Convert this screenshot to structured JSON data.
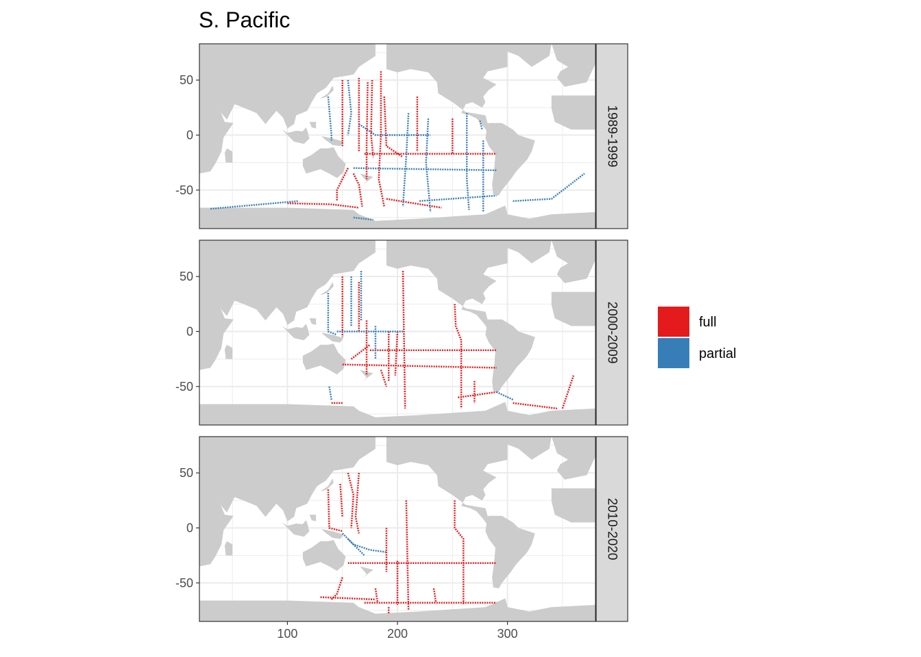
{
  "title": "S. Pacific",
  "colors": {
    "full": "#E41A1C",
    "partial": "#377EB8",
    "land": "#CCCCCC",
    "grid": "#EBEBEB",
    "strip_bg": "#D9D9D9",
    "panel_border": "#333333"
  },
  "legend": {
    "items": [
      {
        "key": "full",
        "label": "full"
      },
      {
        "key": "partial",
        "label": "partial"
      }
    ]
  },
  "chart_data": {
    "type": "map",
    "x_ticks": [
      100,
      200,
      300
    ],
    "y_ticks": [
      50,
      0,
      -50
    ],
    "x_tick_labels": [
      "100",
      "200",
      "300"
    ],
    "y_tick_labels": [
      "50",
      "0",
      "-50"
    ],
    "xlim": [
      20,
      380
    ],
    "ylim": [
      -85,
      83
    ],
    "legend_position": "right",
    "grid": true,
    "panels": [
      {
        "label": "1989-1999",
        "tracks": [
          {
            "type": "full",
            "points": [
              [
                165,
                52
              ],
              [
                165,
                -15
              ]
            ]
          },
          {
            "type": "full",
            "points": [
              [
                150,
                50
              ],
              [
                150,
                -10
              ]
            ]
          },
          {
            "type": "full",
            "points": [
              [
                173,
                48
              ],
              [
                172,
                -10
              ],
              [
                172,
                -40
              ]
            ]
          },
          {
            "type": "full",
            "points": [
              [
                177,
                50
              ],
              [
                176,
                0
              ],
              [
                178,
                -20
              ]
            ]
          },
          {
            "type": "full",
            "points": [
              [
                185,
                58
              ],
              [
                185,
                0
              ],
              [
                183,
                -40
              ],
              [
                188,
                -65
              ]
            ]
          },
          {
            "type": "full",
            "points": [
              [
                188,
                35
              ],
              [
                190,
                -10
              ],
              [
                205,
                -20
              ]
            ]
          },
          {
            "type": "full",
            "points": [
              [
                170,
                -17
              ],
              [
                290,
                -17
              ]
            ]
          },
          {
            "type": "full",
            "points": [
              [
                155,
                -30
              ],
              [
                150,
                -40
              ],
              [
                145,
                -50
              ],
              [
                145,
                -60
              ]
            ]
          },
          {
            "type": "full",
            "points": [
              [
                160,
                -35
              ],
              [
                165,
                -45
              ],
              [
                168,
                -65
              ]
            ]
          },
          {
            "type": "full",
            "points": [
              [
                100,
                -62
              ],
              [
                140,
                -63
              ],
              [
                165,
                -66
              ]
            ]
          },
          {
            "type": "full",
            "points": [
              [
                190,
                -58
              ],
              [
                240,
                -66
              ]
            ]
          },
          {
            "type": "full",
            "points": [
              [
                218,
                35
              ],
              [
                218,
                -15
              ]
            ]
          },
          {
            "type": "full",
            "points": [
              [
                250,
                15
              ],
              [
                250,
                -17
              ]
            ]
          },
          {
            "type": "partial",
            "points": [
              [
                137,
                35
              ],
              [
                140,
                0
              ],
              [
                140,
                -5
              ]
            ]
          },
          {
            "type": "partial",
            "points": [
              [
                155,
                50
              ],
              [
                158,
                20
              ],
              [
                155,
                0
              ]
            ]
          },
          {
            "type": "partial",
            "points": [
              [
                165,
                10
              ],
              [
                180,
                0
              ],
              [
                230,
                0
              ]
            ]
          },
          {
            "type": "partial",
            "points": [
              [
                160,
                -30
              ],
              [
                290,
                -32
              ]
            ]
          },
          {
            "type": "partial",
            "points": [
              [
                210,
                20
              ],
              [
                208,
                -20
              ],
              [
                205,
                -65
              ]
            ]
          },
          {
            "type": "partial",
            "points": [
              [
                228,
                15
              ],
              [
                226,
                -25
              ],
              [
                230,
                -70
              ]
            ]
          },
          {
            "type": "partial",
            "points": [
              [
                263,
                20
              ],
              [
                263,
                -40
              ],
              [
                265,
                -68
              ]
            ]
          },
          {
            "type": "partial",
            "points": [
              [
                275,
                13
              ],
              [
                277,
                5
              ]
            ]
          },
          {
            "type": "partial",
            "points": [
              [
                278,
                -5
              ],
              [
                278,
                -70
              ]
            ]
          },
          {
            "type": "partial",
            "points": [
              [
                220,
                -60
              ],
              [
                290,
                -55
              ]
            ]
          },
          {
            "type": "partial",
            "points": [
              [
                305,
                -60
              ],
              [
                340,
                -58
              ],
              [
                370,
                -35
              ]
            ]
          },
          {
            "type": "partial",
            "points": [
              [
                30,
                -67
              ],
              [
                110,
                -60
              ]
            ]
          },
          {
            "type": "partial",
            "points": [
              [
                160,
                -75
              ],
              [
                178,
                -77
              ]
            ]
          }
        ]
      },
      {
        "label": "2000-2009",
        "tracks": [
          {
            "type": "full",
            "points": [
              [
                150,
                50
              ],
              [
                150,
                -5
              ]
            ]
          },
          {
            "type": "full",
            "points": [
              [
                165,
                45
              ],
              [
                165,
                0
              ]
            ]
          },
          {
            "type": "full",
            "points": [
              [
                172,
                10
              ],
              [
                172,
                -40
              ]
            ]
          },
          {
            "type": "full",
            "points": [
              [
                192,
                0
              ],
              [
                192,
                -45
              ]
            ]
          },
          {
            "type": "full",
            "points": [
              [
                200,
                0
              ],
              [
                198,
                -40
              ]
            ]
          },
          {
            "type": "full",
            "points": [
              [
                205,
                55
              ],
              [
                207,
                -70
              ]
            ]
          },
          {
            "type": "full",
            "points": [
              [
                150,
                -30
              ],
              [
                290,
                -33
              ]
            ]
          },
          {
            "type": "full",
            "points": [
              [
                175,
                -17
              ],
              [
                290,
                -17
              ]
            ]
          },
          {
            "type": "full",
            "points": [
              [
                158,
                -25
              ],
              [
                175,
                -12
              ]
            ]
          },
          {
            "type": "full",
            "points": [
              [
                185,
                -35
              ],
              [
                190,
                -50
              ]
            ]
          },
          {
            "type": "full",
            "points": [
              [
                252,
                25
              ],
              [
                253,
                5
              ],
              [
                258,
                -8
              ],
              [
                258,
                -70
              ]
            ]
          },
          {
            "type": "full",
            "points": [
              [
                255,
                -60
              ],
              [
                290,
                -55
              ]
            ]
          },
          {
            "type": "full",
            "points": [
              [
                270,
                -45
              ],
              [
                270,
                -65
              ]
            ]
          },
          {
            "type": "full",
            "points": [
              [
                305,
                -65
              ],
              [
                345,
                -70
              ]
            ]
          },
          {
            "type": "full",
            "points": [
              [
                350,
                -70
              ],
              [
                360,
                -40
              ]
            ]
          },
          {
            "type": "full",
            "points": [
              [
                140,
                -65
              ],
              [
                150,
                -65
              ]
            ]
          },
          {
            "type": "partial",
            "points": [
              [
                137,
                35
              ],
              [
                137,
                0
              ],
              [
                145,
                -3
              ]
            ]
          },
          {
            "type": "partial",
            "points": [
              [
                158,
                50
              ],
              [
                158,
                5
              ]
            ]
          },
          {
            "type": "partial",
            "points": [
              [
                167,
                55
              ],
              [
                167,
                10
              ]
            ]
          },
          {
            "type": "partial",
            "points": [
              [
                145,
                0
              ],
              [
                205,
                0
              ]
            ]
          },
          {
            "type": "partial",
            "points": [
              [
                180,
                5
              ],
              [
                180,
                -25
              ]
            ]
          },
          {
            "type": "partial",
            "points": [
              [
                290,
                -55
              ],
              [
                305,
                -62
              ]
            ]
          },
          {
            "type": "partial",
            "points": [
              [
                138,
                -50
              ],
              [
                140,
                -62
              ]
            ]
          }
        ]
      },
      {
        "label": "2010-2020",
        "tracks": [
          {
            "type": "full",
            "points": [
              [
                137,
                35
              ],
              [
                138,
                0
              ],
              [
                150,
                -3
              ]
            ]
          },
          {
            "type": "full",
            "points": [
              [
                148,
                40
              ],
              [
                150,
                10
              ]
            ]
          },
          {
            "type": "full",
            "points": [
              [
                155,
                50
              ],
              [
                160,
                30
              ],
              [
                158,
                0
              ]
            ]
          },
          {
            "type": "full",
            "points": [
              [
                165,
                50
              ],
              [
                162,
                10
              ],
              [
                165,
                -5
              ]
            ]
          },
          {
            "type": "full",
            "points": [
              [
                190,
                0
              ],
              [
                190,
                -40
              ]
            ]
          },
          {
            "type": "full",
            "points": [
              [
                200,
                -30
              ],
              [
                200,
                -70
              ]
            ]
          },
          {
            "type": "full",
            "points": [
              [
                208,
                25
              ],
              [
                210,
                -75
              ]
            ]
          },
          {
            "type": "full",
            "points": [
              [
                252,
                25
              ],
              [
                252,
                0
              ],
              [
                260,
                -10
              ],
              [
                260,
                -70
              ]
            ]
          },
          {
            "type": "full",
            "points": [
              [
                155,
                -32
              ],
              [
                290,
                -32
              ]
            ]
          },
          {
            "type": "full",
            "points": [
              [
                150,
                -45
              ],
              [
                145,
                -60
              ],
              [
                140,
                -65
              ]
            ]
          },
          {
            "type": "full",
            "points": [
              [
                130,
                -63
              ],
              [
                180,
                -65
              ]
            ]
          },
          {
            "type": "full",
            "points": [
              [
                170,
                -68
              ],
              [
                290,
                -68
              ]
            ]
          },
          {
            "type": "full",
            "points": [
              [
                233,
                -55
              ],
              [
                235,
                -68
              ]
            ]
          },
          {
            "type": "full",
            "points": [
              [
                180,
                -55
              ],
              [
                182,
                -68
              ]
            ]
          },
          {
            "type": "full",
            "points": [
              [
                192,
                -72
              ],
              [
                192,
                -78
              ]
            ]
          },
          {
            "type": "partial",
            "points": [
              [
                150,
                -5
              ],
              [
                160,
                -15
              ],
              [
                175,
                -20
              ],
              [
                190,
                -22
              ]
            ]
          },
          {
            "type": "partial",
            "points": [
              [
                155,
                -10
              ],
              [
                170,
                -25
              ]
            ]
          }
        ]
      }
    ]
  }
}
